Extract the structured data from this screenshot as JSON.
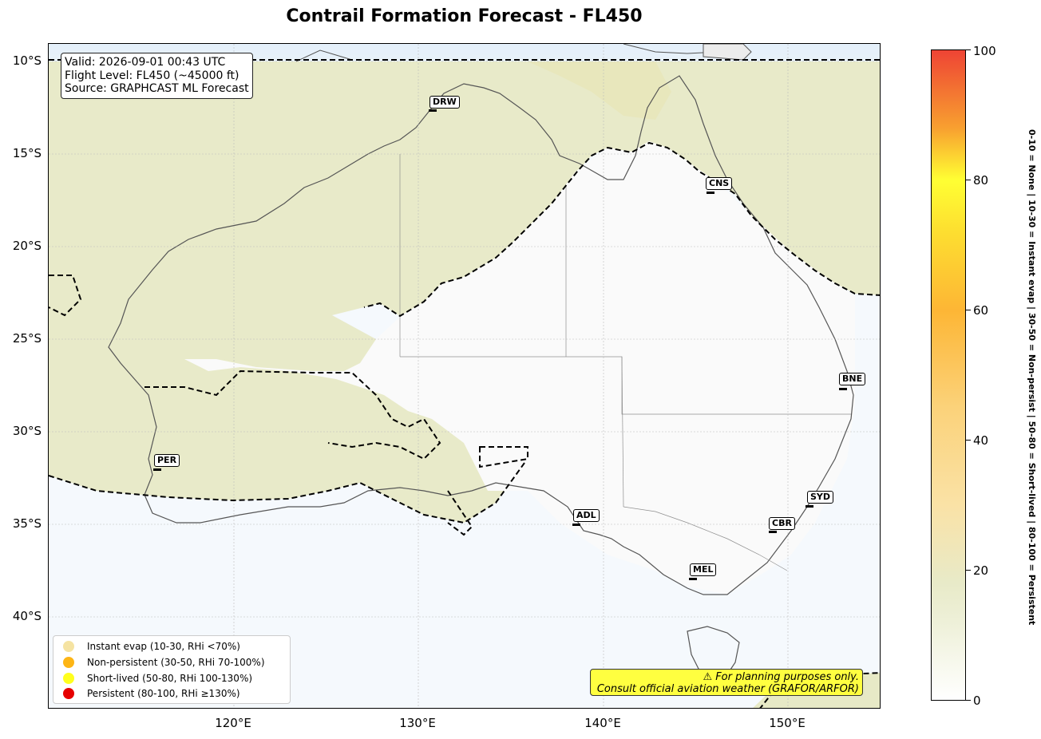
{
  "title": "Contrail Formation Forecast - FL450",
  "info": {
    "valid": "Valid: 2026-09-01 00:43 UTC",
    "flight_level": "Flight Level: FL450 (~45000 ft)",
    "source": "Source: GRAPHCAST ML Forecast"
  },
  "axes": {
    "lat_ticks": [
      "10°S",
      "15°S",
      "20°S",
      "25°S",
      "30°S",
      "35°S",
      "40°S"
    ],
    "lon_ticks": [
      "120°E",
      "130°E",
      "140°E",
      "150°E"
    ]
  },
  "cities": [
    {
      "code": "DRW"
    },
    {
      "code": "CNS"
    },
    {
      "code": "BNE"
    },
    {
      "code": "PER"
    },
    {
      "code": "SYD"
    },
    {
      "code": "ADL"
    },
    {
      "code": "CBR"
    },
    {
      "code": "MEL"
    }
  ],
  "legend": {
    "items": [
      {
        "label": "Instant evap (10-30, RHi <70%)",
        "color": "#f5e3a2"
      },
      {
        "label": "Non-persistent (30-50, RHi 70-100%)",
        "color": "#fdb515"
      },
      {
        "label": "Short-lived (50-80, RHi 100-130%)",
        "color": "#ffff1e"
      },
      {
        "label": "Persistent (80-100, RHi ≥130%)",
        "color": "#e60000"
      }
    ]
  },
  "warning": {
    "line1": "⚠ For planning purposes only.",
    "line2": "Consult official aviation weather (GRAFOR/ARFOR)"
  },
  "colorbar": {
    "ticks": [
      "0",
      "20",
      "40",
      "60",
      "80",
      "100"
    ],
    "caption": "0-10 = None  |  10-30 = Instant evap  |  30-50 = Non-persist  |  50-80 = Short-lived  |  80-100 = Persistent"
  },
  "colors": {
    "land_outline": "#555555",
    "contour": "#000000",
    "low_risk_fill": "#e6e7c4",
    "clear_fill": "#fafafa",
    "sea_fill": "#f4f8fc"
  }
}
